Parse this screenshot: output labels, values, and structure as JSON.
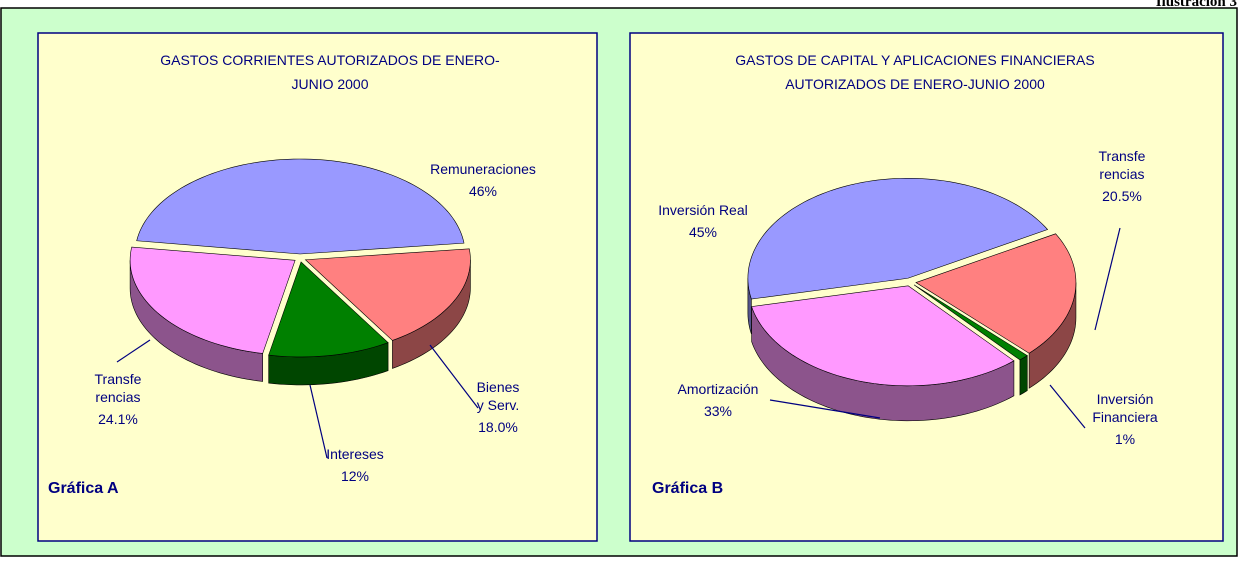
{
  "header": "Ilustración 3",
  "chart_data": [
    {
      "type": "pie",
      "title": "GASTOS CORRIENTES  AUTORIZADOS DE ENERO-\nJUNIO 2000",
      "caption": "Gráfica A",
      "categories": [
        "Remuneraciones",
        "Bienes\ny Serv.",
        "Intereses",
        "Transfe\nrencias"
      ],
      "values": [
        46,
        18.0,
        12,
        24.1
      ],
      "value_labels": [
        "46%",
        "18.0%",
        "12%",
        "24.1%"
      ],
      "colors": [
        "#9999ff",
        "#ff8080",
        "#008000",
        "#ff99ff"
      ]
    },
    {
      "type": "pie",
      "title": "GASTOS DE CAPITAL Y APLICACIONES FINANCIERAS\nAUTORIZADOS DE ENERO-JUNIO 2000",
      "caption": "Gráfica B",
      "categories": [
        "Inversión Real",
        "Transfe\nrencias",
        "Inversión\nFinanciera",
        "Amortización"
      ],
      "values": [
        45,
        20.5,
        1,
        33
      ],
      "value_labels": [
        "45%",
        "20.5%",
        "1%",
        "33%"
      ],
      "colors": [
        "#9999ff",
        "#ff8080",
        "#008000",
        "#ff99ff"
      ]
    }
  ]
}
